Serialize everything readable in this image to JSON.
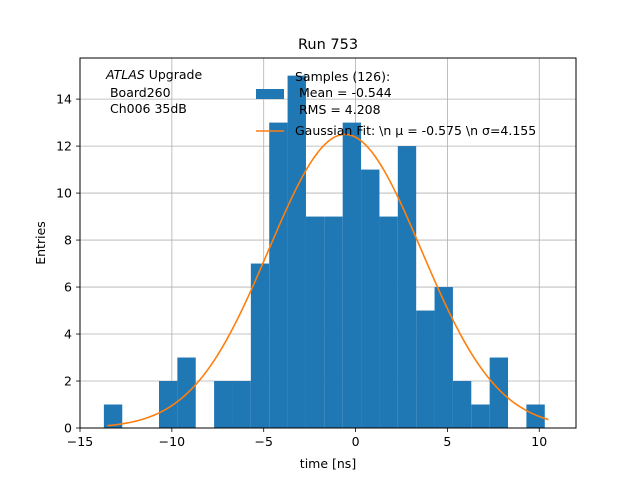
{
  "chart_data": {
    "type": "bar",
    "title": "Run 753",
    "xlabel": "time [ns]",
    "ylabel": "Entries",
    "xlim": [
      -15,
      12
    ],
    "ylim": [
      0,
      15.75
    ],
    "xticks": [
      -15,
      -10,
      -5,
      0,
      5,
      10
    ],
    "yticks": [
      0,
      2,
      4,
      6,
      8,
      10,
      12,
      14
    ],
    "grid": true,
    "bin_width": 1.0,
    "bins": [
      {
        "x0": -13.7,
        "count": 1
      },
      {
        "x0": -10.7,
        "count": 2
      },
      {
        "x0": -9.7,
        "count": 3
      },
      {
        "x0": -7.7,
        "count": 2
      },
      {
        "x0": -6.7,
        "count": 2
      },
      {
        "x0": -5.7,
        "count": 7
      },
      {
        "x0": -4.7,
        "count": 13
      },
      {
        "x0": -3.7,
        "count": 15
      },
      {
        "x0": -2.7,
        "count": 9
      },
      {
        "x0": -1.7,
        "count": 9
      },
      {
        "x0": -0.7,
        "count": 13
      },
      {
        "x0": 0.3,
        "count": 11
      },
      {
        "x0": 1.3,
        "count": 9
      },
      {
        "x0": 2.3,
        "count": 12
      },
      {
        "x0": 3.3,
        "count": 5
      },
      {
        "x0": 4.3,
        "count": 6
      },
      {
        "x0": 5.3,
        "count": 2
      },
      {
        "x0": 6.3,
        "count": 1
      },
      {
        "x0": 7.3,
        "count": 3
      },
      {
        "x0": 9.3,
        "count": 1
      }
    ],
    "fit": {
      "type": "gaussian",
      "amplitude": 12.5,
      "mu": -0.575,
      "sigma": 4.155,
      "x_range": [
        -13.5,
        10.5
      ]
    },
    "hist_color": "#1f77b4",
    "fit_color": "#ff7f0e",
    "legend": {
      "placement": "top-right",
      "hist_label": [
        "Samples (126):",
        " Mean = -0.544",
        " RMS = 4.208"
      ],
      "fit_label": "Gaussian Fit: \\n μ = -0.575 \\n σ=4.155"
    },
    "annotation": {
      "italic_word": "ATLAS",
      "rest": " Upgrade",
      "lines": [
        " Board260",
        " Ch006 35dB"
      ]
    }
  }
}
